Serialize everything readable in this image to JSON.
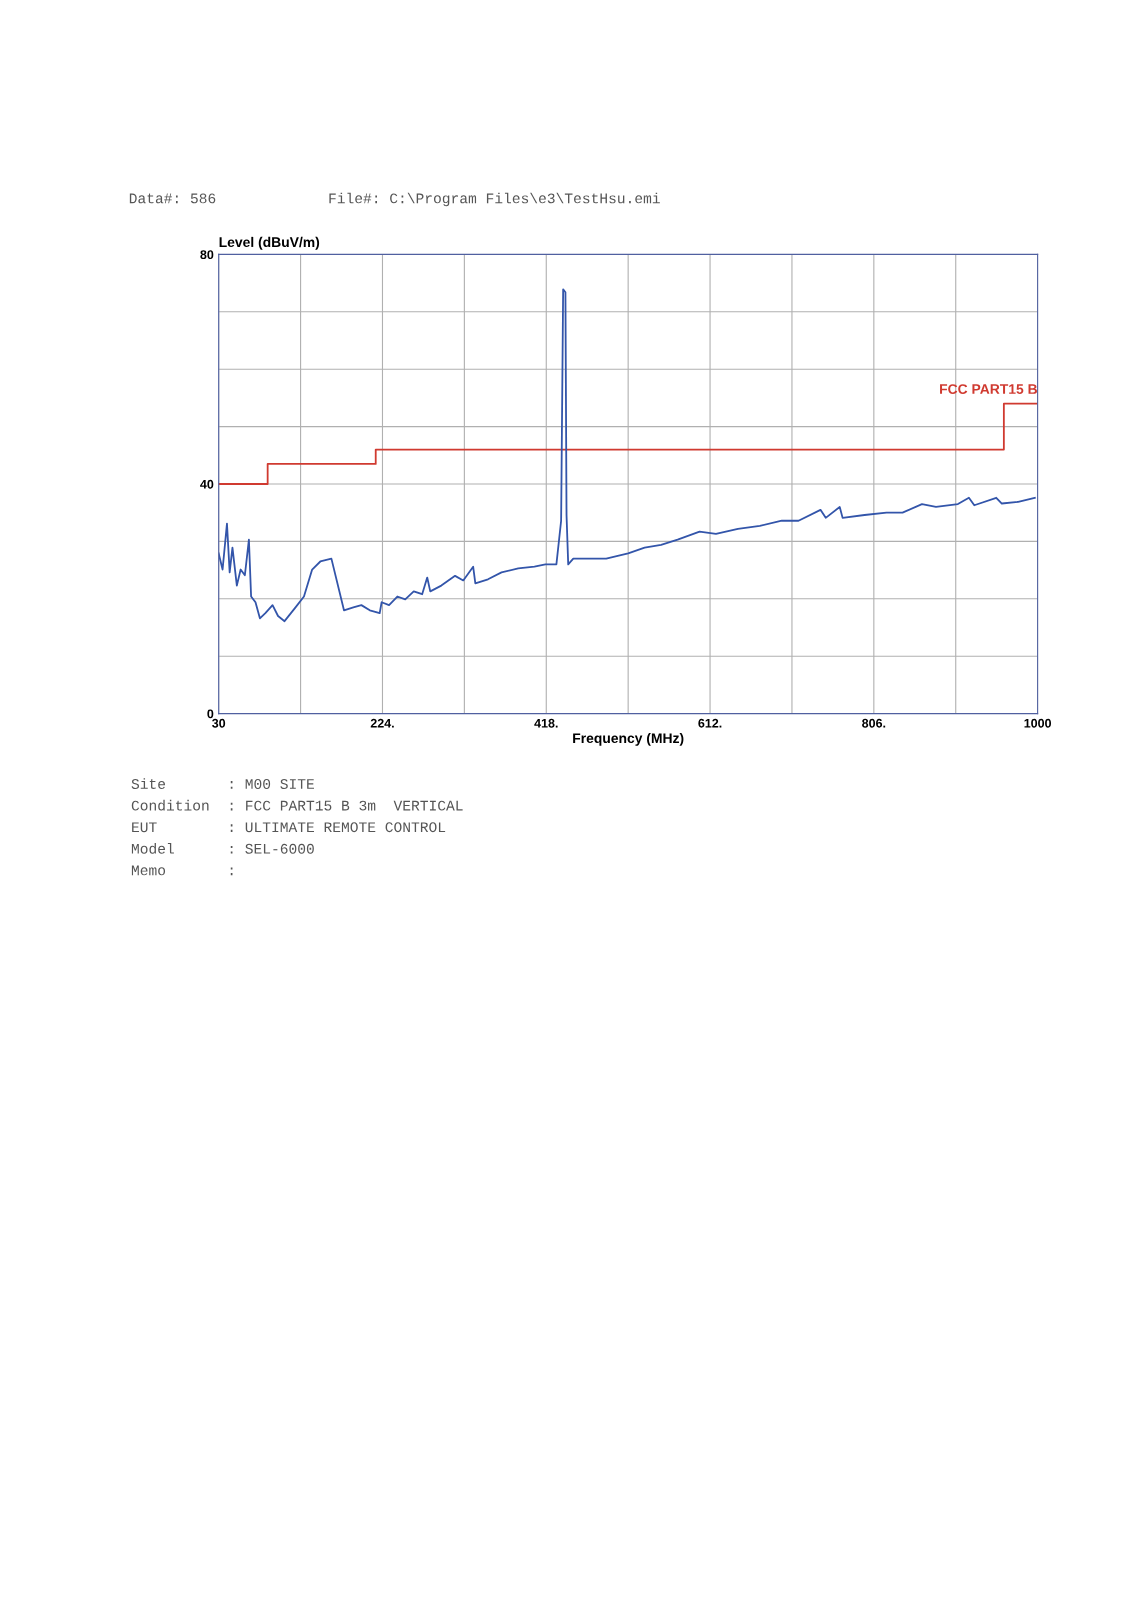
{
  "chart_data": {
    "type": "line",
    "xlabel": "Frequency (MHz)",
    "ylabel": "Level (dBuV/m)",
    "xlim": [
      30,
      1000
    ],
    "ylim": [
      0,
      80
    ],
    "xticks": [
      30,
      {
        "value": 127,
        "label": null
      },
      {
        "value": 224,
        "label": "224."
      },
      {
        "value": 321,
        "label": null
      },
      {
        "value": 418,
        "label": "418."
      },
      {
        "value": 515,
        "label": null
      },
      {
        "value": 612,
        "label": "612."
      },
      {
        "value": 709,
        "label": null
      },
      {
        "value": 806,
        "label": "806."
      },
      {
        "value": 903,
        "label": null
      },
      1000
    ],
    "yticks": [
      0,
      {
        "value": 10,
        "label": null
      },
      {
        "value": 20,
        "label": null
      },
      {
        "value": 30,
        "label": null
      },
      40,
      {
        "value": 50,
        "label": null
      },
      {
        "value": 60,
        "label": null
      },
      {
        "value": 70,
        "label": null
      },
      80
    ],
    "grid": true,
    "legend": false,
    "line_style": "solid",
    "marker": "none",
    "series": [
      {
        "type": "step",
        "name": "FCC PART15 B",
        "color": "#d03a30",
        "x": [
          30,
          88,
          88,
          216,
          216,
          960,
          960,
          1000
        ],
        "values": [
          40,
          40,
          43.5,
          43.5,
          46,
          46,
          54,
          54
        ]
      },
      {
        "color": "#3355aa",
        "x": [
          30,
          34.6,
          39.8,
          43,
          46.3,
          51.5,
          56,
          61,
          65.8,
          68.4,
          73.6,
          78.8,
          85.3,
          93.8,
          100.3,
          108,
          121,
          131,
          140.7,
          150.4,
          163.5,
          178.4,
          189.5,
          199,
          209,
          220.7,
          223,
          231.8,
          241.6,
          251,
          261,
          271,
          277,
          280.6,
          293.7,
          310,
          319.7,
          331.4,
          334,
          349,
          365,
          384.8,
          404,
          417,
          430,
          435.6,
          438,
          440.7,
          442,
          444,
          450,
          469,
          489,
          515,
          534.5,
          554,
          573.6,
          599.6,
          619,
          645,
          671,
          697,
          716.8,
          742.8,
          749,
          765.6,
          769,
          795,
          821,
          840,
          863,
          879.6,
          905.6,
          918.6,
          925,
          951,
          957.6,
          977,
          996.7
        ],
        "values": [
          27.9,
          25.1,
          33.1,
          24.6,
          28.9,
          22.3,
          25.1,
          24.1,
          30.3,
          20.4,
          19.4,
          16.6,
          17.5,
          18.9,
          17.0,
          16.1,
          18.5,
          20.4,
          25.1,
          26.5,
          27.0,
          18.0,
          18.5,
          18.9,
          18.0,
          17.5,
          19.4,
          18.9,
          20.4,
          19.9,
          21.3,
          20.8,
          23.7,
          21.3,
          22.3,
          24.0,
          23.2,
          25.6,
          22.7,
          23.4,
          24.6,
          25.3,
          25.6,
          26.0,
          26.0,
          33.6,
          73.9,
          73.4,
          34.6,
          26.0,
          27.0,
          27.0,
          27.0,
          27.9,
          28.9,
          29.4,
          30.3,
          31.7,
          31.3,
          32.2,
          32.7,
          33.6,
          33.6,
          35.5,
          34.1,
          36.0,
          34.1,
          34.6,
          35.0,
          35.0,
          36.5,
          36.0,
          36.5,
          37.6,
          36.3,
          37.6,
          36.6,
          36.9,
          37.6
        ]
      }
    ],
    "annotations": [
      "Data#: 586",
      "File#: C:\\Program Files\\e3\\TestHsu.emi",
      "Site       : M00 SITE",
      "Condition  : FCC PART15 B 3m  VERTICAL",
      "EUT        : ULTIMATE REMOTE CONTROL",
      "Model      : SEL-6000",
      "Memo       :"
    ]
  }
}
